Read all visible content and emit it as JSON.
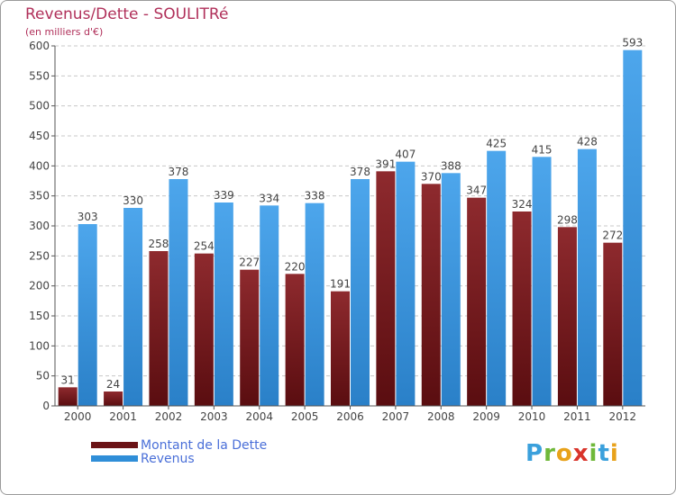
{
  "title": "Revenus/Dette - SOULITRé",
  "subtitle": "(en milliers d'€)",
  "colors": {
    "dette": "#6b1316",
    "revenus": "#2f8ed8",
    "title": "#b0305a",
    "legend_text": "#4a6fd8"
  },
  "chart_data": {
    "type": "bar",
    "title": "Revenus/Dette - SOULITRé",
    "ylabel": "(en milliers d'€)",
    "xlabel": "",
    "categories": [
      "2000",
      "2001",
      "2002",
      "2003",
      "2004",
      "2005",
      "2006",
      "2007",
      "2008",
      "2009",
      "2010",
      "2011",
      "2012"
    ],
    "series": [
      {
        "name": "Montant de la Dette",
        "values": [
          31,
          24,
          258,
          254,
          227,
          220,
          191,
          391,
          370,
          347,
          324,
          298,
          272
        ],
        "color": "#6b1316"
      },
      {
        "name": "Revenus",
        "values": [
          303,
          330,
          378,
          339,
          334,
          338,
          378,
          407,
          388,
          425,
          415,
          428,
          593
        ],
        "color": "#2f8ed8"
      }
    ],
    "ylim": [
      0,
      600
    ],
    "yticks": [
      0,
      50,
      100,
      150,
      200,
      250,
      300,
      350,
      400,
      450,
      500,
      550,
      600
    ],
    "grid": true,
    "legend": "bottom-left"
  },
  "legend": {
    "items": [
      {
        "label": "Montant de la Dette",
        "color": "#6b1316"
      },
      {
        "label": "Revenus",
        "color": "#2f8ed8"
      }
    ]
  },
  "logo": {
    "text": "Proxiti",
    "letters": [
      "P",
      "r",
      "o",
      "x",
      "i",
      "t",
      "i"
    ],
    "letter_colors": [
      "#3aa0dc",
      "#6fb83a",
      "#e8a21b",
      "#d9342b",
      "#6fb83a",
      "#3aa0dc",
      "#e8a21b"
    ]
  }
}
